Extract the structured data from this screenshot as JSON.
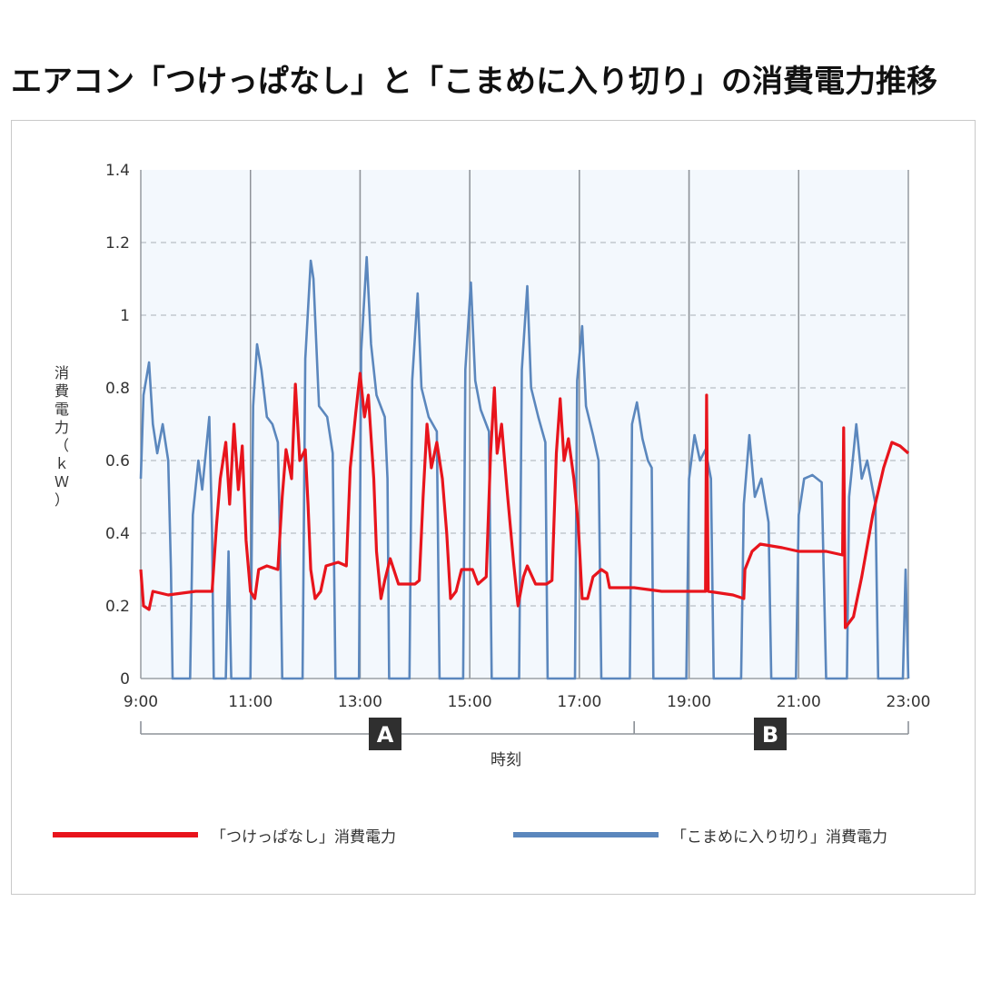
{
  "title": "エアコン「つけっぱなし」と「こまめに入り切り」の消費電力推移",
  "chart_data": {
    "type": "line",
    "ylabel_chars": [
      "消",
      "費",
      "電",
      "力",
      "（",
      "ｋ",
      "Ｗ",
      "）"
    ],
    "xlabel": "時刻",
    "y_ticks": [
      "0",
      "0.2",
      "0.4",
      "0.6",
      "0.8",
      "1",
      "1.2",
      "1.4"
    ],
    "ylim": [
      0,
      1.4
    ],
    "x_ticks": [
      "9:00",
      "11:00",
      "13:00",
      "15:00",
      "17:00",
      "19:00",
      "21:00",
      "23:00"
    ],
    "xlim_hours": [
      9,
      23
    ],
    "grid": "horizontal dashed, vertical solid every 2 hours",
    "brackets": [
      {
        "label": "A",
        "from": "9:00",
        "to": "18:00"
      },
      {
        "label": "B",
        "from": "18:00",
        "to": "23:00"
      }
    ],
    "colors": {
      "red": "#e8141c",
      "blue": "#5b87bd",
      "plot_bg": "#f3f8fd"
    },
    "series": [
      {
        "name": "「つけっぱなし」消費電力",
        "color": "#e8141c",
        "points": [
          [
            9.0,
            0.3
          ],
          [
            9.05,
            0.2
          ],
          [
            9.15,
            0.19
          ],
          [
            9.22,
            0.24
          ],
          [
            9.5,
            0.23
          ],
          [
            10.0,
            0.24
          ],
          [
            10.3,
            0.24
          ],
          [
            10.38,
            0.42
          ],
          [
            10.45,
            0.55
          ],
          [
            10.55,
            0.65
          ],
          [
            10.62,
            0.48
          ],
          [
            10.7,
            0.7
          ],
          [
            10.78,
            0.52
          ],
          [
            10.85,
            0.64
          ],
          [
            10.92,
            0.38
          ],
          [
            11.0,
            0.24
          ],
          [
            11.08,
            0.22
          ],
          [
            11.15,
            0.3
          ],
          [
            11.3,
            0.31
          ],
          [
            11.5,
            0.3
          ],
          [
            11.58,
            0.5
          ],
          [
            11.65,
            0.63
          ],
          [
            11.75,
            0.55
          ],
          [
            11.82,
            0.81
          ],
          [
            11.9,
            0.6
          ],
          [
            12.0,
            0.63
          ],
          [
            12.05,
            0.48
          ],
          [
            12.1,
            0.3
          ],
          [
            12.18,
            0.22
          ],
          [
            12.28,
            0.24
          ],
          [
            12.38,
            0.31
          ],
          [
            12.6,
            0.32
          ],
          [
            12.75,
            0.31
          ],
          [
            12.82,
            0.58
          ],
          [
            12.92,
            0.73
          ],
          [
            13.0,
            0.84
          ],
          [
            13.08,
            0.72
          ],
          [
            13.15,
            0.78
          ],
          [
            13.25,
            0.55
          ],
          [
            13.3,
            0.35
          ],
          [
            13.38,
            0.22
          ],
          [
            13.45,
            0.27
          ],
          [
            13.55,
            0.33
          ],
          [
            13.7,
            0.26
          ],
          [
            14.0,
            0.26
          ],
          [
            14.08,
            0.27
          ],
          [
            14.15,
            0.5
          ],
          [
            14.22,
            0.7
          ],
          [
            14.3,
            0.58
          ],
          [
            14.4,
            0.65
          ],
          [
            14.5,
            0.55
          ],
          [
            14.58,
            0.4
          ],
          [
            14.65,
            0.22
          ],
          [
            14.75,
            0.24
          ],
          [
            14.85,
            0.3
          ],
          [
            15.05,
            0.3
          ],
          [
            15.15,
            0.26
          ],
          [
            15.3,
            0.28
          ],
          [
            15.38,
            0.62
          ],
          [
            15.45,
            0.8
          ],
          [
            15.5,
            0.62
          ],
          [
            15.58,
            0.7
          ],
          [
            15.68,
            0.52
          ],
          [
            15.8,
            0.32
          ],
          [
            15.88,
            0.2
          ],
          [
            15.98,
            0.28
          ],
          [
            16.05,
            0.31
          ],
          [
            16.2,
            0.26
          ],
          [
            16.4,
            0.26
          ],
          [
            16.5,
            0.27
          ],
          [
            16.58,
            0.62
          ],
          [
            16.65,
            0.77
          ],
          [
            16.72,
            0.6
          ],
          [
            16.8,
            0.66
          ],
          [
            16.9,
            0.55
          ],
          [
            16.98,
            0.42
          ],
          [
            17.05,
            0.22
          ],
          [
            17.15,
            0.22
          ],
          [
            17.25,
            0.28
          ],
          [
            17.4,
            0.3
          ],
          [
            17.5,
            0.29
          ],
          [
            17.55,
            0.25
          ],
          [
            18.0,
            0.25
          ],
          [
            18.5,
            0.24
          ],
          [
            19.0,
            0.24
          ],
          [
            19.3,
            0.24
          ],
          [
            19.32,
            0.78
          ],
          [
            19.35,
            0.24
          ],
          [
            19.8,
            0.23
          ],
          [
            20.0,
            0.22
          ],
          [
            20.02,
            0.3
          ],
          [
            20.15,
            0.35
          ],
          [
            20.3,
            0.37
          ],
          [
            20.7,
            0.36
          ],
          [
            21.0,
            0.35
          ],
          [
            21.5,
            0.35
          ],
          [
            21.8,
            0.34
          ],
          [
            21.82,
            0.69
          ],
          [
            21.85,
            0.14
          ],
          [
            22.0,
            0.17
          ],
          [
            22.15,
            0.28
          ],
          [
            22.35,
            0.45
          ],
          [
            22.55,
            0.58
          ],
          [
            22.7,
            0.65
          ],
          [
            22.85,
            0.64
          ],
          [
            23.0,
            0.62
          ]
        ]
      },
      {
        "name": "「こまめに入り切り」消費電力",
        "color": "#5b87bd",
        "points": [
          [
            9.0,
            0.55
          ],
          [
            9.05,
            0.78
          ],
          [
            9.15,
            0.87
          ],
          [
            9.22,
            0.7
          ],
          [
            9.3,
            0.62
          ],
          [
            9.4,
            0.7
          ],
          [
            9.5,
            0.6
          ],
          [
            9.55,
            0.3
          ],
          [
            9.58,
            0.0
          ],
          [
            9.9,
            0.0
          ],
          [
            9.95,
            0.45
          ],
          [
            10.05,
            0.6
          ],
          [
            10.12,
            0.52
          ],
          [
            10.25,
            0.72
          ],
          [
            10.3,
            0.4
          ],
          [
            10.33,
            0.0
          ],
          [
            10.55,
            0.0
          ],
          [
            10.6,
            0.35
          ],
          [
            10.65,
            0.0
          ],
          [
            11.0,
            0.0
          ],
          [
            11.05,
            0.75
          ],
          [
            11.12,
            0.92
          ],
          [
            11.2,
            0.85
          ],
          [
            11.3,
            0.72
          ],
          [
            11.4,
            0.7
          ],
          [
            11.5,
            0.65
          ],
          [
            11.55,
            0.3
          ],
          [
            11.58,
            0.0
          ],
          [
            11.95,
            0.0
          ],
          [
            12.0,
            0.88
          ],
          [
            12.1,
            1.15
          ],
          [
            12.15,
            1.1
          ],
          [
            12.25,
            0.75
          ],
          [
            12.4,
            0.72
          ],
          [
            12.5,
            0.62
          ],
          [
            12.55,
            0.0
          ],
          [
            12.98,
            0.0
          ],
          [
            13.02,
            0.9
          ],
          [
            13.12,
            1.16
          ],
          [
            13.2,
            0.92
          ],
          [
            13.3,
            0.78
          ],
          [
            13.45,
            0.72
          ],
          [
            13.5,
            0.55
          ],
          [
            13.53,
            0.0
          ],
          [
            13.9,
            0.0
          ],
          [
            13.95,
            0.82
          ],
          [
            14.05,
            1.06
          ],
          [
            14.12,
            0.8
          ],
          [
            14.25,
            0.72
          ],
          [
            14.4,
            0.68
          ],
          [
            14.45,
            0.0
          ],
          [
            14.88,
            0.0
          ],
          [
            14.92,
            0.85
          ],
          [
            15.02,
            1.09
          ],
          [
            15.1,
            0.82
          ],
          [
            15.2,
            0.74
          ],
          [
            15.35,
            0.68
          ],
          [
            15.4,
            0.0
          ],
          [
            15.9,
            0.0
          ],
          [
            15.95,
            0.85
          ],
          [
            16.05,
            1.08
          ],
          [
            16.12,
            0.8
          ],
          [
            16.25,
            0.72
          ],
          [
            16.38,
            0.65
          ],
          [
            16.42,
            0.0
          ],
          [
            16.92,
            0.0
          ],
          [
            16.96,
            0.82
          ],
          [
            17.05,
            0.97
          ],
          [
            17.12,
            0.75
          ],
          [
            17.25,
            0.67
          ],
          [
            17.35,
            0.6
          ],
          [
            17.4,
            0.0
          ],
          [
            17.92,
            0.0
          ],
          [
            17.96,
            0.7
          ],
          [
            18.05,
            0.76
          ],
          [
            18.15,
            0.66
          ],
          [
            18.25,
            0.6
          ],
          [
            18.32,
            0.58
          ],
          [
            18.35,
            0.0
          ],
          [
            18.95,
            0.0
          ],
          [
            19.0,
            0.55
          ],
          [
            19.1,
            0.67
          ],
          [
            19.2,
            0.6
          ],
          [
            19.3,
            0.63
          ],
          [
            19.4,
            0.55
          ],
          [
            19.45,
            0.0
          ],
          [
            19.95,
            0.0
          ],
          [
            20.0,
            0.48
          ],
          [
            20.1,
            0.67
          ],
          [
            20.2,
            0.5
          ],
          [
            20.32,
            0.55
          ],
          [
            20.45,
            0.43
          ],
          [
            20.5,
            0.0
          ],
          [
            20.95,
            0.0
          ],
          [
            21.0,
            0.45
          ],
          [
            21.1,
            0.55
          ],
          [
            21.25,
            0.56
          ],
          [
            21.42,
            0.54
          ],
          [
            21.5,
            0.0
          ],
          [
            21.88,
            0.0
          ],
          [
            21.92,
            0.5
          ],
          [
            22.05,
            0.7
          ],
          [
            22.15,
            0.55
          ],
          [
            22.25,
            0.6
          ],
          [
            22.4,
            0.48
          ],
          [
            22.45,
            0.0
          ],
          [
            22.9,
            0.0
          ],
          [
            22.95,
            0.3
          ],
          [
            23.0,
            0.0
          ]
        ]
      }
    ]
  }
}
